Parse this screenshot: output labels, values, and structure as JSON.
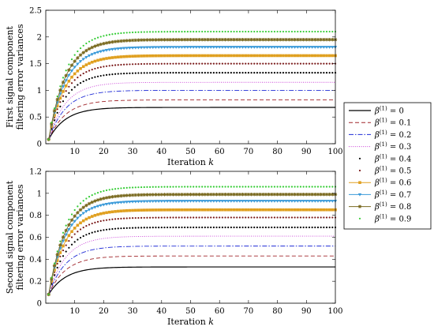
{
  "legend": {
    "entries": [
      {
        "label": "β(1) = 0",
        "base": "β",
        "sup": "(1)",
        "rest": " = 0",
        "color": "#000000",
        "style": "solid"
      },
      {
        "label": "β(1) = 0.1",
        "base": "β",
        "sup": "(1)",
        "rest": " = 0.1",
        "color": "#a0252a",
        "style": "dashed"
      },
      {
        "label": "β(1) = 0.2",
        "base": "β",
        "sup": "(1)",
        "rest": " = 0.2",
        "color": "#1f2bd6",
        "style": "dashdot"
      },
      {
        "label": "β(1) = 0.3",
        "base": "β",
        "sup": "(1)",
        "rest": " = 0.3",
        "color": "#c83cd6",
        "style": "dotted"
      },
      {
        "label": "β(1) = 0.4",
        "base": "β",
        "sup": "(1)",
        "rest": " = 0.4",
        "color": "#000000",
        "style": "dots"
      },
      {
        "label": "β(1) = 0.5",
        "base": "β",
        "sup": "(1)",
        "rest": " = 0.5",
        "color": "#7a1a1a",
        "style": "dots"
      },
      {
        "label": "β(1) = 0.6",
        "base": "β",
        "sup": "(1)",
        "rest": " = 0.6",
        "color": "#e0a020",
        "style": "square"
      },
      {
        "label": "β(1) = 0.7",
        "base": "β",
        "sup": "(1)",
        "rest": " = 0.7",
        "color": "#3a9ad9",
        "style": "triangle"
      },
      {
        "label": "β(1) = 0.8",
        "base": "β",
        "sup": "(1)",
        "rest": " = 0.8",
        "color": "#7a6a20",
        "style": "star"
      },
      {
        "label": "β(1) = 0.9",
        "base": "β",
        "sup": "(1)",
        "rest": " = 0.9",
        "color": "#33cc33",
        "style": "dots"
      }
    ]
  },
  "chart_data": [
    {
      "type": "line",
      "title": "",
      "xlabel": "Iteration k",
      "ylabel_line1": "First signal component",
      "ylabel_line2": "filtering error variances",
      "xlim": [
        0,
        100
      ],
      "ylim": [
        0,
        2.5
      ],
      "xticks": [
        10,
        20,
        30,
        40,
        50,
        60,
        70,
        80,
        90,
        100
      ],
      "yticks": [
        0,
        0.5,
        1,
        1.5,
        2,
        2.5
      ],
      "ytick_labels": [
        "0",
        "0.5",
        "1",
        "1.5",
        "2",
        "2.5"
      ],
      "x_start": 1,
      "y_start": 0.08,
      "rate": 0.17,
      "series_steady": [
        0.68,
        0.82,
        1.0,
        1.15,
        1.33,
        1.5,
        1.65,
        1.81,
        1.95,
        2.1
      ],
      "grid": false
    },
    {
      "type": "line",
      "title": "",
      "xlabel": "Iteration k",
      "ylabel_line1": "Second signal component",
      "ylabel_line2": "filtering error variances",
      "xlim": [
        0,
        100
      ],
      "ylim": [
        0,
        1.2
      ],
      "xticks": [
        10,
        20,
        30,
        40,
        50,
        60,
        70,
        80,
        90,
        100
      ],
      "yticks": [
        0,
        0.2,
        0.4,
        0.6,
        0.8,
        1,
        1.2
      ],
      "ytick_labels": [
        "0",
        "0.2",
        "0.4",
        "0.6",
        "0.8",
        "1",
        "1.2"
      ],
      "x_start": 1,
      "y_start": 0.08,
      "rate": 0.17,
      "series_steady": [
        0.33,
        0.43,
        0.52,
        0.61,
        0.69,
        0.78,
        0.85,
        0.93,
        0.99,
        1.06
      ],
      "grid": false
    }
  ]
}
